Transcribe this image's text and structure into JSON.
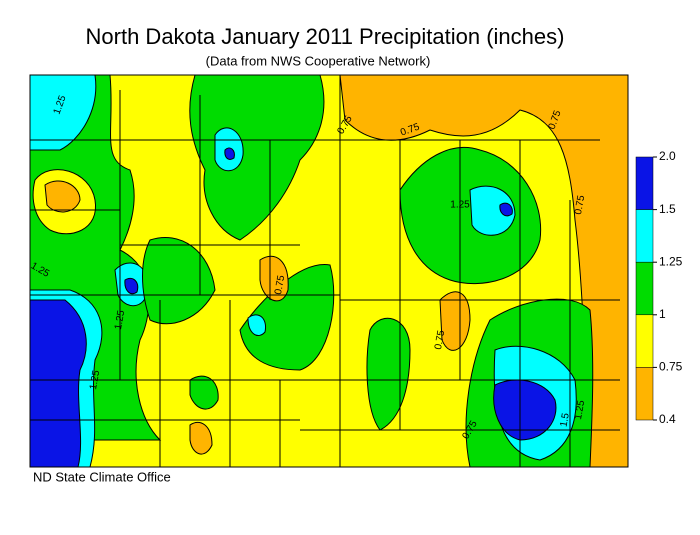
{
  "header": {
    "title": "North Dakota January 2011 Precipitation (inches)",
    "subtitle": "(Data from NWS Cooperative Network)"
  },
  "legend": {
    "bands": [
      {
        "from": 2,
        "to": 1.5,
        "color": "#0a14e6"
      },
      {
        "from": 1.5,
        "to": 1.25,
        "color": "#00ffff"
      },
      {
        "from": 1.25,
        "to": 1,
        "color": "#00dc00"
      },
      {
        "from": 1,
        "to": 0.75,
        "color": "#ffff00"
      },
      {
        "from": 0.75,
        "to": 0.4,
        "color": "#ffb400"
      }
    ],
    "ticks": [
      {
        "value": 2,
        "label": "2.0"
      },
      1.5,
      1.25,
      1,
      0.75,
      0.4
    ]
  },
  "map": {
    "contour_labels": [
      "1.25",
      "0.75",
      "0.75",
      "0.75",
      "0.75",
      "1.25",
      "0.75",
      "1.25",
      "1.25",
      "0.75",
      "1.25",
      "1.5",
      "1.25",
      "0.75"
    ]
  },
  "footer": {
    "credit": "ND State Climate Office"
  }
}
